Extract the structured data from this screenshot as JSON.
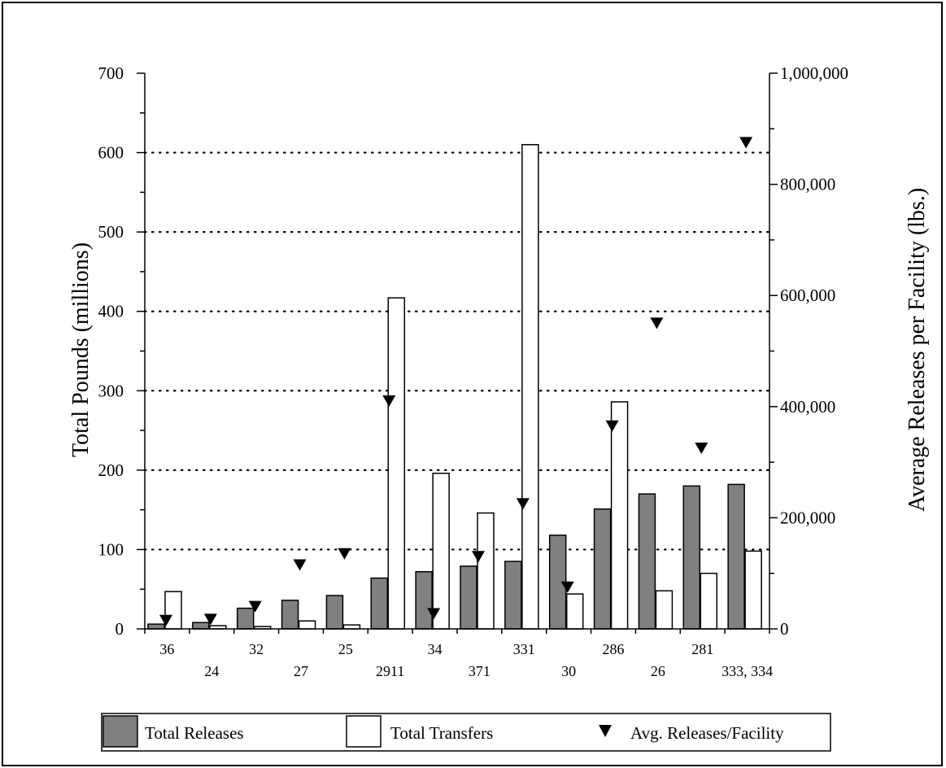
{
  "chart_data": {
    "type": "bar",
    "title": "",
    "ylabel": "Total Pounds (millions)",
    "y2label": "Average Releases per Facility (lbs.)",
    "ylim": [
      0,
      700
    ],
    "y2lim": [
      0,
      1000000
    ],
    "yticks": [
      0,
      100,
      200,
      300,
      400,
      500,
      600,
      700
    ],
    "y2ticks": [
      "0",
      "200,000",
      "400,000",
      "600,000",
      "800,000",
      "1,000,000"
    ],
    "grid": "horizontal dotted at 100–600",
    "legend_position": "bottom",
    "categories": [
      "36",
      "24",
      "32",
      "27",
      "25",
      "2911",
      "34",
      "371",
      "331",
      "30",
      "286",
      "26",
      "281",
      "333, 334"
    ],
    "series": [
      {
        "name": "Total Releases",
        "type": "bar",
        "color": "#808080",
        "axis": "left",
        "values": [
          6,
          8,
          26,
          36,
          42,
          64,
          72,
          79,
          85,
          118,
          151,
          170,
          180,
          182
        ]
      },
      {
        "name": "Total Transfers",
        "type": "bar",
        "color": "#ffffff",
        "axis": "left",
        "values": [
          47,
          4,
          3,
          10,
          5,
          417,
          196,
          146,
          610,
          44,
          286,
          48,
          70,
          98
        ]
      },
      {
        "name": "Avg. Releases/Facility",
        "type": "marker",
        "marker": "down-triangle",
        "color": "#000000",
        "axis": "right",
        "values": [
          15000,
          17000,
          40000,
          115000,
          135000,
          410000,
          27000,
          130000,
          225000,
          75000,
          365000,
          550000,
          325000,
          875000
        ]
      }
    ]
  },
  "legend": {
    "releases_label": "Total Releases",
    "transfers_label": "Total Transfers",
    "avg_label": "Avg. Releases/Facility"
  }
}
